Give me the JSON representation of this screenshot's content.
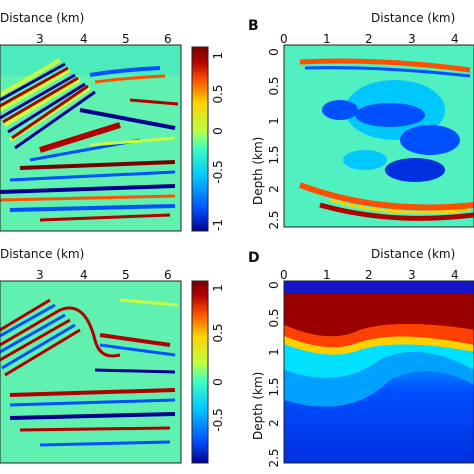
{
  "panels": [
    {
      "id": "A",
      "label": "",
      "x_axis_label": "Distance (km)",
      "x_ticks": [
        "3",
        "4",
        "5",
        "6"
      ],
      "y_axis_label": "",
      "y_ticks": [],
      "colorbar_ticks": [
        "1",
        "0.5",
        "0",
        "-0.5",
        "-1"
      ]
    },
    {
      "id": "B",
      "label": "B",
      "x_axis_label": "Distance (km)",
      "x_ticks": [
        "0",
        "1",
        "2",
        "3",
        "4"
      ],
      "y_axis_label": "Depth (km)",
      "y_ticks": [
        "0",
        "0.5",
        "1",
        "1.5",
        "2",
        "2.5"
      ]
    },
    {
      "id": "C",
      "label": "",
      "x_axis_label": "Distance (km)",
      "x_ticks": [
        "3",
        "4",
        "5",
        "6"
      ],
      "y_axis_label": "",
      "y_ticks": [],
      "colorbar_ticks": [
        "1",
        "0.5",
        "0",
        "-0.5"
      ]
    },
    {
      "id": "D",
      "label": "D",
      "x_axis_label": "Distance (km)",
      "x_ticks": [
        "0",
        "1",
        "2",
        "3",
        "4"
      ],
      "y_axis_label": "Depth (km)",
      "y_ticks": [
        "0",
        "0.5",
        "1",
        "1.5",
        "2",
        "2.5"
      ]
    }
  ],
  "colormap": [
    "#00008f",
    "#0050ff",
    "#00c8ff",
    "#40ffc0",
    "#c0ff40",
    "#ffd000",
    "#ff5000",
    "#b00000",
    "#7a0000"
  ]
}
